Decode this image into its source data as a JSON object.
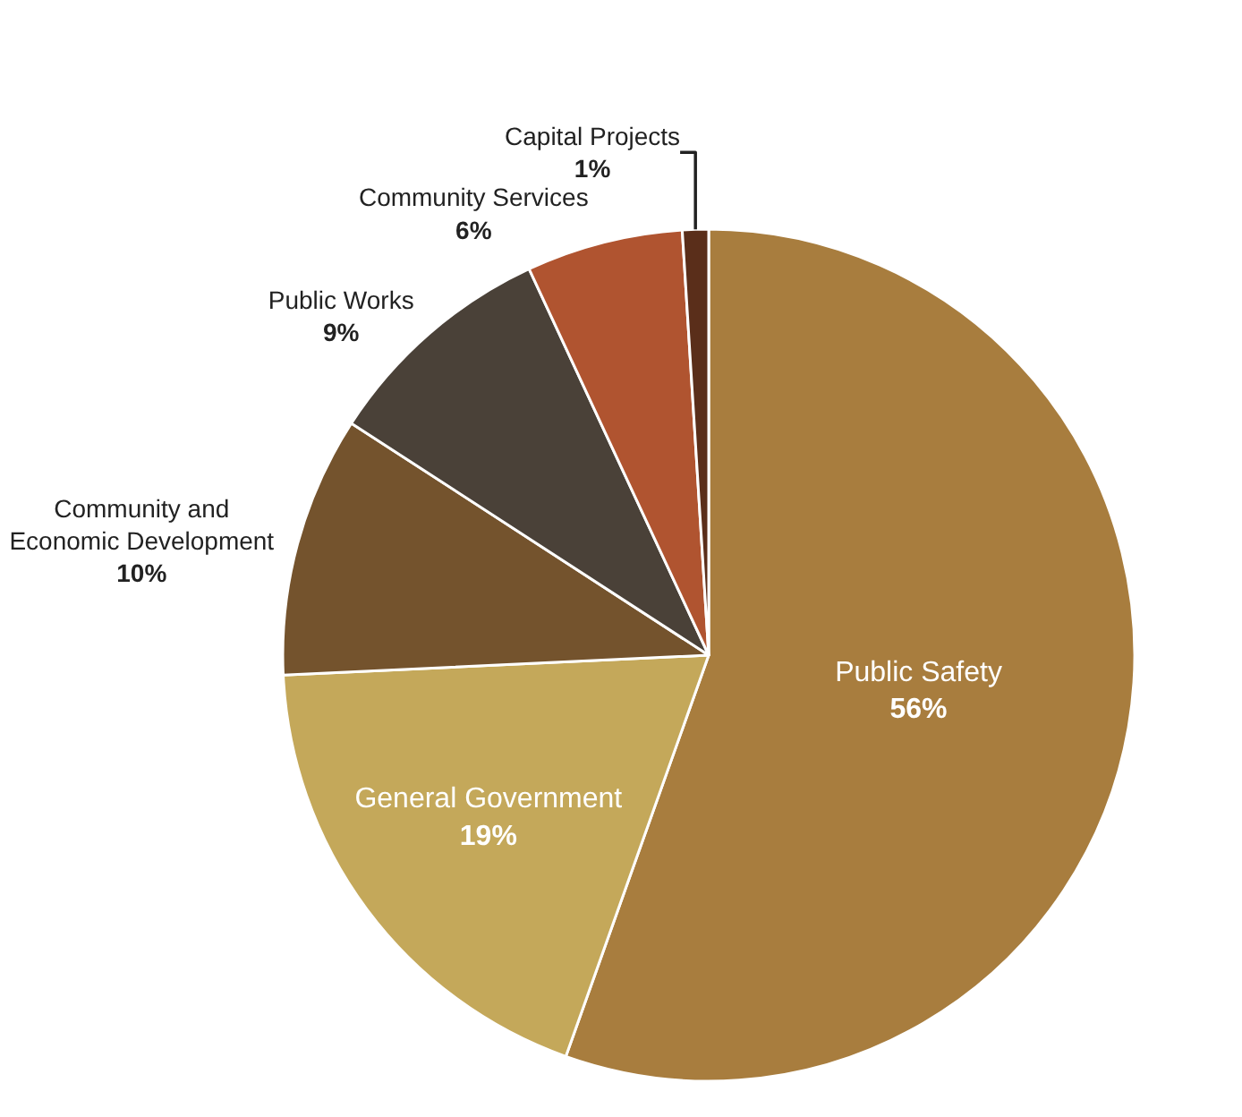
{
  "chart_data": {
    "type": "pie",
    "categories": [
      "Public Safety",
      "General Government",
      "Community and Economic Development",
      "Public Works",
      "Community Services",
      "Capital Projects"
    ],
    "values": [
      56,
      19,
      10,
      9,
      6,
      1
    ],
    "value_labels": [
      "56%",
      "19%",
      "10%",
      "9%",
      "6%",
      "1%"
    ],
    "colors": [
      "#a87d3e",
      "#c4a85a",
      "#74532d",
      "#4a4138",
      "#b05430",
      "#5a2e1a"
    ],
    "legend": false
  }
}
